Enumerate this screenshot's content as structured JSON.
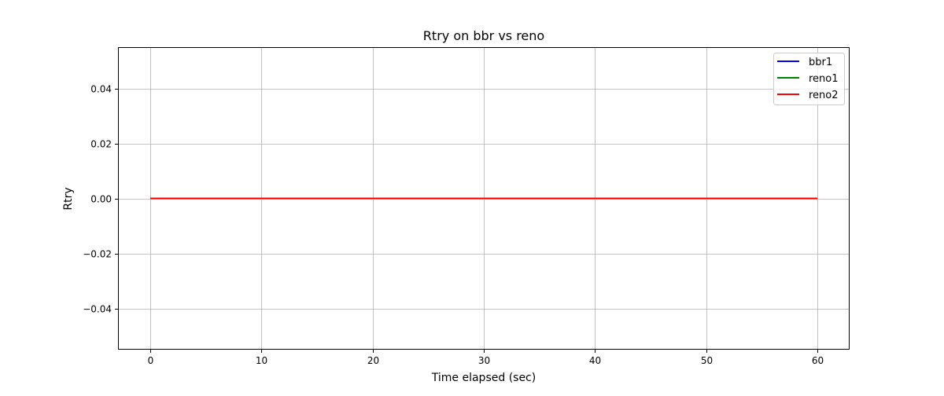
{
  "chart_data": {
    "type": "line",
    "title": "Rtry on bbr vs reno",
    "xlabel": "Time elapsed (sec)",
    "ylabel": "Rtry",
    "xlim": [
      -2.9,
      62.9
    ],
    "ylim": [
      -0.055,
      0.055
    ],
    "x_ticks": [
      0,
      10,
      20,
      30,
      40,
      50,
      60
    ],
    "x_tick_labels": [
      "0",
      "10",
      "20",
      "30",
      "40",
      "50",
      "60"
    ],
    "y_ticks": [
      -0.04,
      -0.02,
      0.0,
      0.02,
      0.04
    ],
    "y_tick_labels": [
      "−0.04",
      "−0.02",
      "0.00",
      "0.02",
      "0.04"
    ],
    "grid": true,
    "legend_position": "top-right",
    "series": [
      {
        "name": "bbr1",
        "color": "#0000ff",
        "x": [
          0,
          60
        ],
        "y": [
          0,
          0
        ]
      },
      {
        "name": "reno1",
        "color": "#008000",
        "x": [
          0,
          60
        ],
        "y": [
          0,
          0
        ]
      },
      {
        "name": "reno2",
        "color": "#ff0000",
        "x": [
          0,
          60
        ],
        "y": [
          0,
          0
        ]
      }
    ]
  }
}
